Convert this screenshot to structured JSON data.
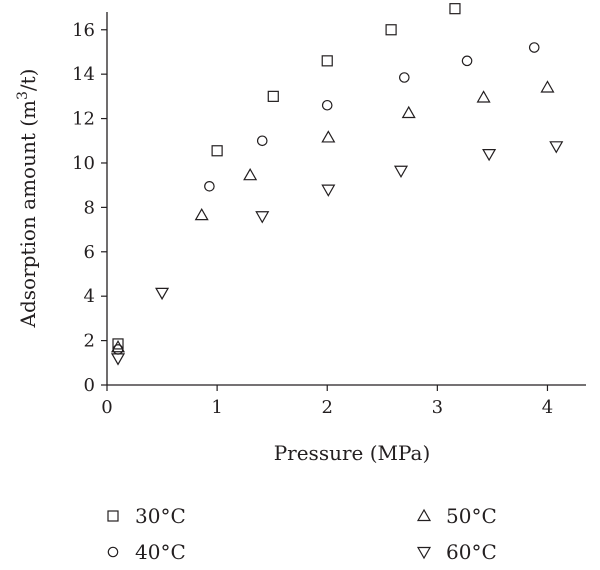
{
  "chart_data": {
    "type": "scatter",
    "xlabel": "Pressure (MPa)",
    "ylabel_main": "Adsorption amount (m",
    "ylabel_sup": "3",
    "ylabel_tail": "/t)",
    "xlim": [
      0,
      4.35
    ],
    "ylim": [
      0,
      16.8
    ],
    "xticks": [
      0,
      1,
      2,
      3,
      4
    ],
    "yticks": [
      0,
      2,
      4,
      6,
      8,
      10,
      12,
      14,
      16
    ],
    "grid": false,
    "legend_position": "bottom",
    "series": [
      {
        "name": "30°C",
        "marker": "square",
        "x": [
          0.1,
          1.0,
          1.51,
          2.0,
          2.58,
          3.16
        ],
        "y": [
          1.85,
          10.55,
          13.0,
          14.6,
          16.0,
          16.95
        ]
      },
      {
        "name": "40°C",
        "marker": "circle",
        "x": [
          0.1,
          0.93,
          1.41,
          2.0,
          2.7,
          3.27,
          3.88
        ],
        "y": [
          1.6,
          8.95,
          11.0,
          12.6,
          13.85,
          14.6,
          15.2
        ]
      },
      {
        "name": "50°C",
        "marker": "triangle-up",
        "x": [
          0.1,
          0.86,
          1.3,
          2.01,
          2.74,
          3.42,
          4.0
        ],
        "y": [
          1.7,
          7.65,
          9.45,
          11.15,
          12.25,
          12.95,
          13.4
        ]
      },
      {
        "name": "60°C",
        "marker": "triangle-down",
        "x": [
          0.1,
          0.5,
          1.41,
          2.01,
          2.67,
          3.47,
          4.08
        ],
        "y": [
          1.2,
          4.15,
          7.6,
          8.8,
          9.65,
          10.4,
          10.75
        ]
      }
    ]
  }
}
